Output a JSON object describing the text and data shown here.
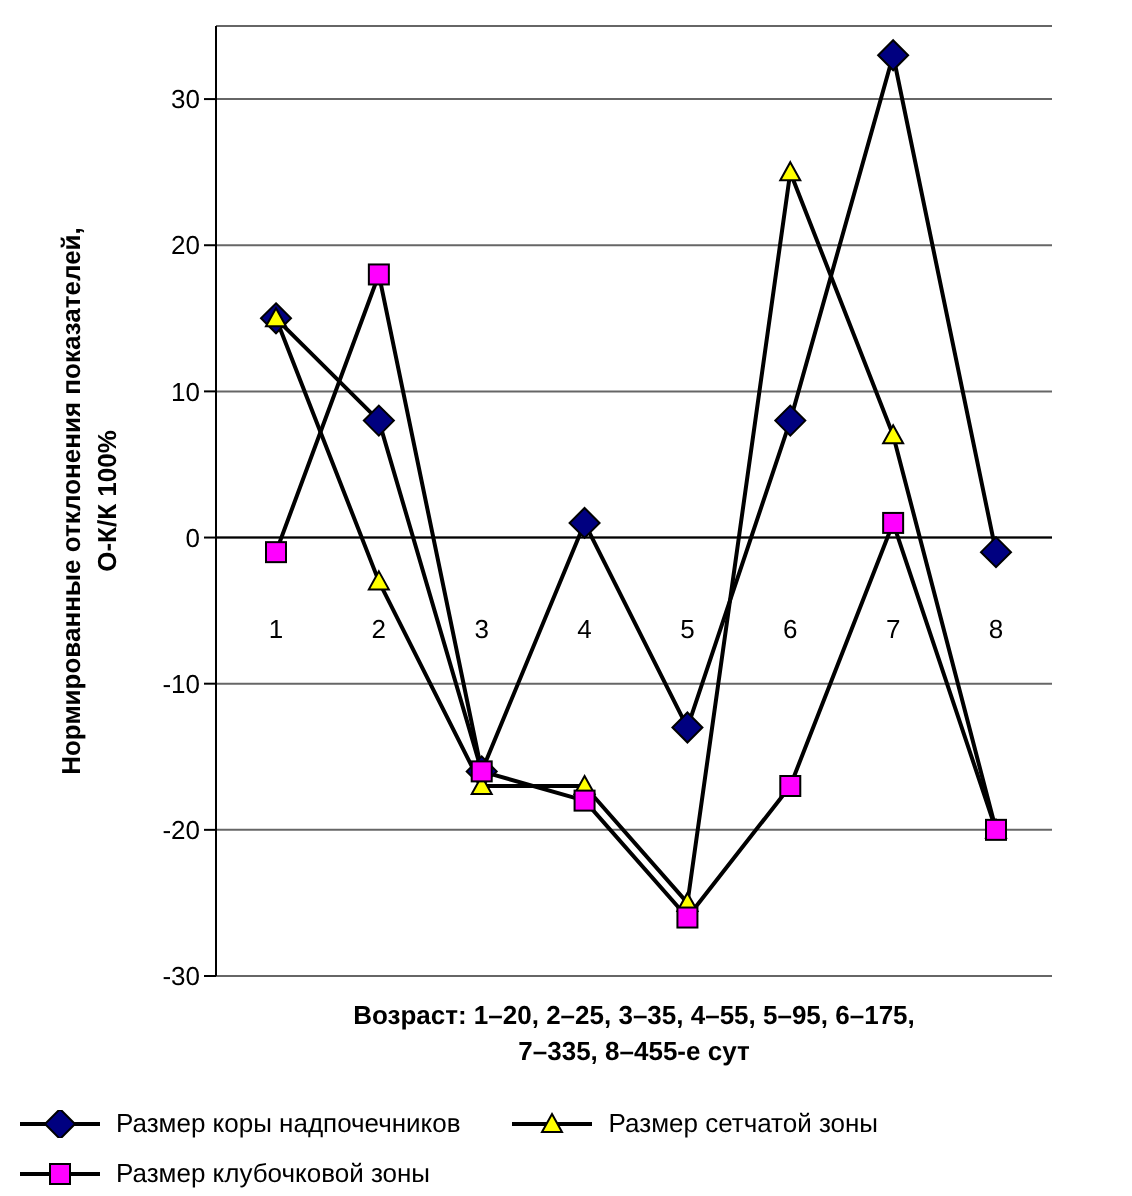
{
  "chart_data": {
    "type": "line",
    "xlabel": "Возраст: 1–20, 2–25, 3–35, 4–55, 5–95, 6–175, 7–335, 8–455-е сут",
    "ylabel": "Нормированные отклонения показателей, О-К/К 100%",
    "categories": [
      "1",
      "2",
      "3",
      "4",
      "5",
      "6",
      "7",
      "8"
    ],
    "series": [
      {
        "name": "Размер коры надпочечников",
        "color": "#000080",
        "marker": "diamond",
        "values": [
          15,
          8,
          -16,
          1,
          -13,
          8,
          33,
          -1
        ]
      },
      {
        "name": "Размер сетчатой зоны",
        "color": "#ffff00",
        "marker": "triangle",
        "values": [
          15,
          -3,
          -17,
          -17,
          -25,
          25,
          7,
          -20
        ]
      },
      {
        "name": "Размер клубочковой зоны",
        "color": "#ff00ff",
        "marker": "square",
        "values": [
          -1,
          18,
          -16,
          -18,
          -26,
          -17,
          1,
          -20
        ]
      }
    ],
    "ylim": [
      -30,
      35
    ],
    "yticks": [
      -30,
      -20,
      -10,
      0,
      10,
      20,
      30
    ],
    "grid": "y",
    "legend": "bottom"
  }
}
